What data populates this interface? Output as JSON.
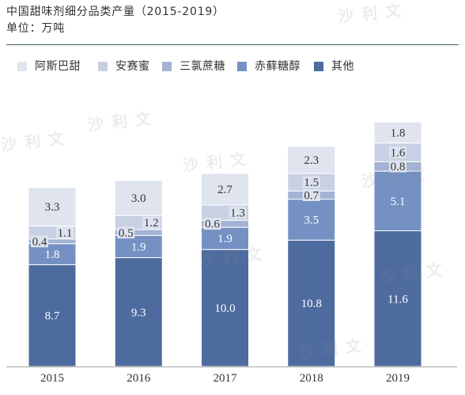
{
  "chart_data": {
    "type": "bar",
    "stacked": true,
    "title": "中国甜味剂细分品类产量（2015-2019）",
    "unit_label": "单位：万吨",
    "categories": [
      "2015",
      "2016",
      "2017",
      "2018",
      "2019"
    ],
    "series": [
      {
        "name": "阿斯巴甜",
        "color": "#dfe4ef",
        "values": [
          3.3,
          3.0,
          2.7,
          2.3,
          1.8
        ]
      },
      {
        "name": "安赛蜜",
        "color": "#c8d1e3",
        "values": [
          1.1,
          1.2,
          1.3,
          1.5,
          1.6
        ]
      },
      {
        "name": "三氯蔗糖",
        "color": "#a3b3d3",
        "values": [
          0.4,
          0.5,
          0.6,
          0.7,
          0.8
        ]
      },
      {
        "name": "赤藓糖醇",
        "color": "#7591c3",
        "values": [
          1.8,
          1.9,
          1.9,
          3.5,
          5.1
        ]
      },
      {
        "name": "其他",
        "color": "#4e6b9f",
        "values": [
          8.7,
          9.3,
          10.0,
          10.8,
          11.6
        ]
      }
    ],
    "ylim": [
      0,
      21
    ],
    "grid": false,
    "legend": "top"
  },
  "watermark": "沙利文"
}
